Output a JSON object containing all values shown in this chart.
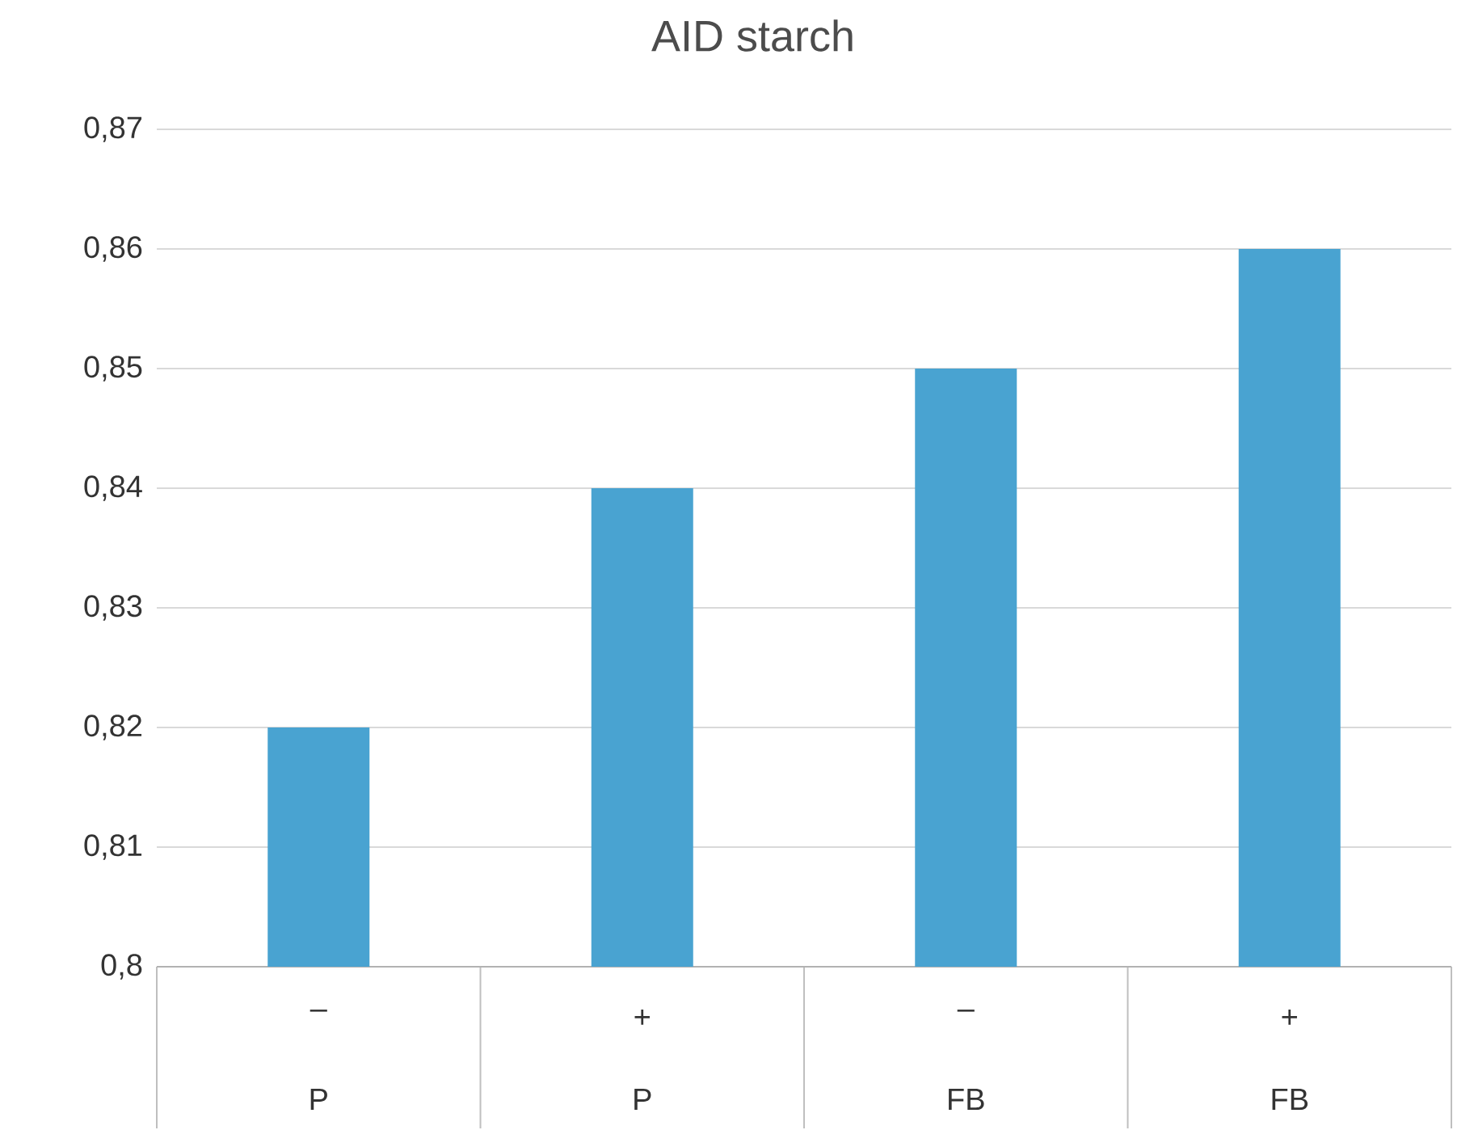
{
  "chart_data": {
    "type": "bar",
    "title": "AID starch",
    "categories": [
      "–",
      "+",
      "–",
      "+"
    ],
    "annotations": [
      "P",
      "P",
      "FB",
      "FB"
    ],
    "values": [
      0.82,
      0.84,
      0.85,
      0.86
    ],
    "color": "#49a3d1",
    "ylim": [
      0.8,
      0.87
    ],
    "yticks": [
      {
        "value": 0.8,
        "label": "0,8"
      },
      {
        "value": 0.81,
        "label": "0,81"
      },
      {
        "value": 0.82,
        "label": "0,82"
      },
      {
        "value": 0.83,
        "label": "0,83"
      },
      {
        "value": 0.84,
        "label": "0,84"
      },
      {
        "value": 0.85,
        "label": "0,85"
      },
      {
        "value": 0.86,
        "label": "0,86"
      },
      {
        "value": 0.87,
        "label": "0,87"
      }
    ],
    "grid": "y"
  }
}
